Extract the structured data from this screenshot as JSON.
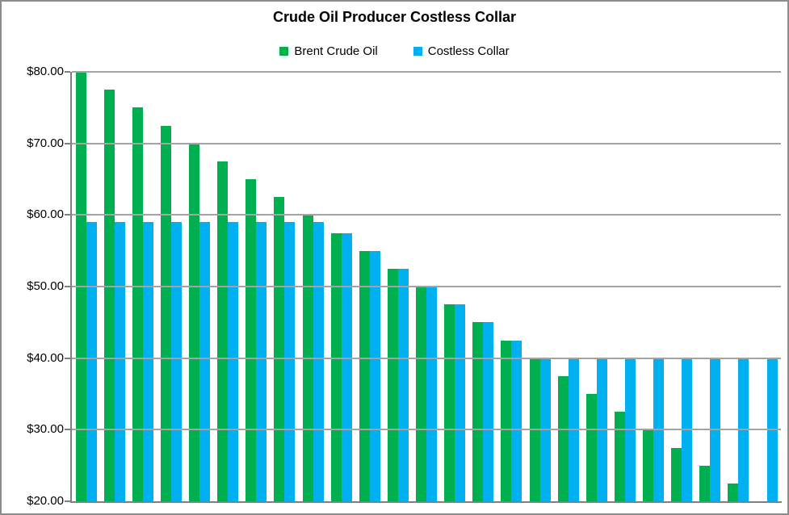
{
  "chart_data": {
    "type": "bar",
    "title": "Crude Oil Producer Costless Collar",
    "xlabel": "",
    "ylabel": "",
    "ylim": [
      20,
      80
    ],
    "grid": true,
    "legend_position": "top-center",
    "x_tick_labels_visible": false,
    "y_ticks": [
      {
        "value": 80,
        "label": "$80.00"
      },
      {
        "value": 70,
        "label": "$70.00"
      },
      {
        "value": 60,
        "label": "$60.00"
      },
      {
        "value": 50,
        "label": "$50.00"
      },
      {
        "value": 40,
        "label": "$40.00"
      },
      {
        "value": 30,
        "label": "$30.00"
      },
      {
        "value": 20,
        "label": "$20.00"
      }
    ],
    "collar_floor": 40,
    "collar_cap": 59,
    "series": [
      {
        "name": "Brent Crude Oil",
        "color": "#00B050",
        "values": [
          80,
          77.5,
          75,
          72.5,
          70,
          67.5,
          65,
          62.5,
          60,
          57.5,
          55,
          52.5,
          50,
          47.5,
          45,
          42.5,
          40,
          37.5,
          35,
          32.5,
          30,
          27.5,
          25,
          22.5,
          20
        ]
      },
      {
        "name": "Costless Collar",
        "color": "#00B0F0",
        "values": [
          59,
          59,
          59,
          59,
          59,
          59,
          59,
          59,
          59,
          57.5,
          55,
          52.5,
          50,
          47.5,
          45,
          42.5,
          40,
          40,
          40,
          40,
          40,
          40,
          40,
          40,
          40
        ]
      }
    ]
  },
  "colors": {
    "background": "#FFFFFF",
    "chart_border": "#8C8C8C",
    "axis_line": "#808080",
    "gridline": "#A3A3A3",
    "title_text": "#000000",
    "label_text": "#000000"
  }
}
